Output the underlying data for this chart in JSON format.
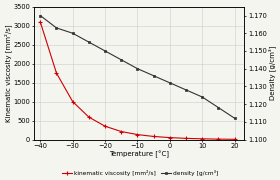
{
  "temperature": [
    -40,
    -35,
    -30,
    -25,
    -20,
    -15,
    -10,
    -5,
    0,
    5,
    10,
    15,
    20
  ],
  "kinematic_viscosity": [
    3100,
    1750,
    1000,
    590,
    350,
    210,
    130,
    80,
    50,
    30,
    18,
    10,
    5
  ],
  "density": [
    1.17,
    1.163,
    1.16,
    1.155,
    1.15,
    1.145,
    1.14,
    1.136,
    1.132,
    1.128,
    1.124,
    1.118,
    1.112
  ],
  "viscosity_color": "#cc0000",
  "density_color": "#333333",
  "grid_color": "#cccccc",
  "bg_color": "#f5f5f0",
  "xlim": [
    -42,
    23
  ],
  "ylim_viscosity": [
    0,
    3500
  ],
  "ylim_density": [
    1.1,
    1.175
  ],
  "yticks_viscosity": [
    0,
    500,
    1000,
    1500,
    2000,
    2500,
    3000,
    3500
  ],
  "yticks_density": [
    1.1,
    1.11,
    1.12,
    1.13,
    1.14,
    1.15,
    1.16,
    1.17
  ],
  "xticks": [
    -40,
    -30,
    -20,
    -10,
    0,
    10,
    20
  ],
  "xlabel": "Temperature [°C]",
  "ylabel_left": "Kinematic viscosity [mm²/s]",
  "ylabel_right": "Density [g/cm³]",
  "legend_viscosity": "kinematic viscosity [mm²/s]",
  "legend_density": "density [g/cm³]",
  "label_fontsize": 5.0,
  "tick_fontsize": 4.8,
  "legend_fontsize": 4.2
}
